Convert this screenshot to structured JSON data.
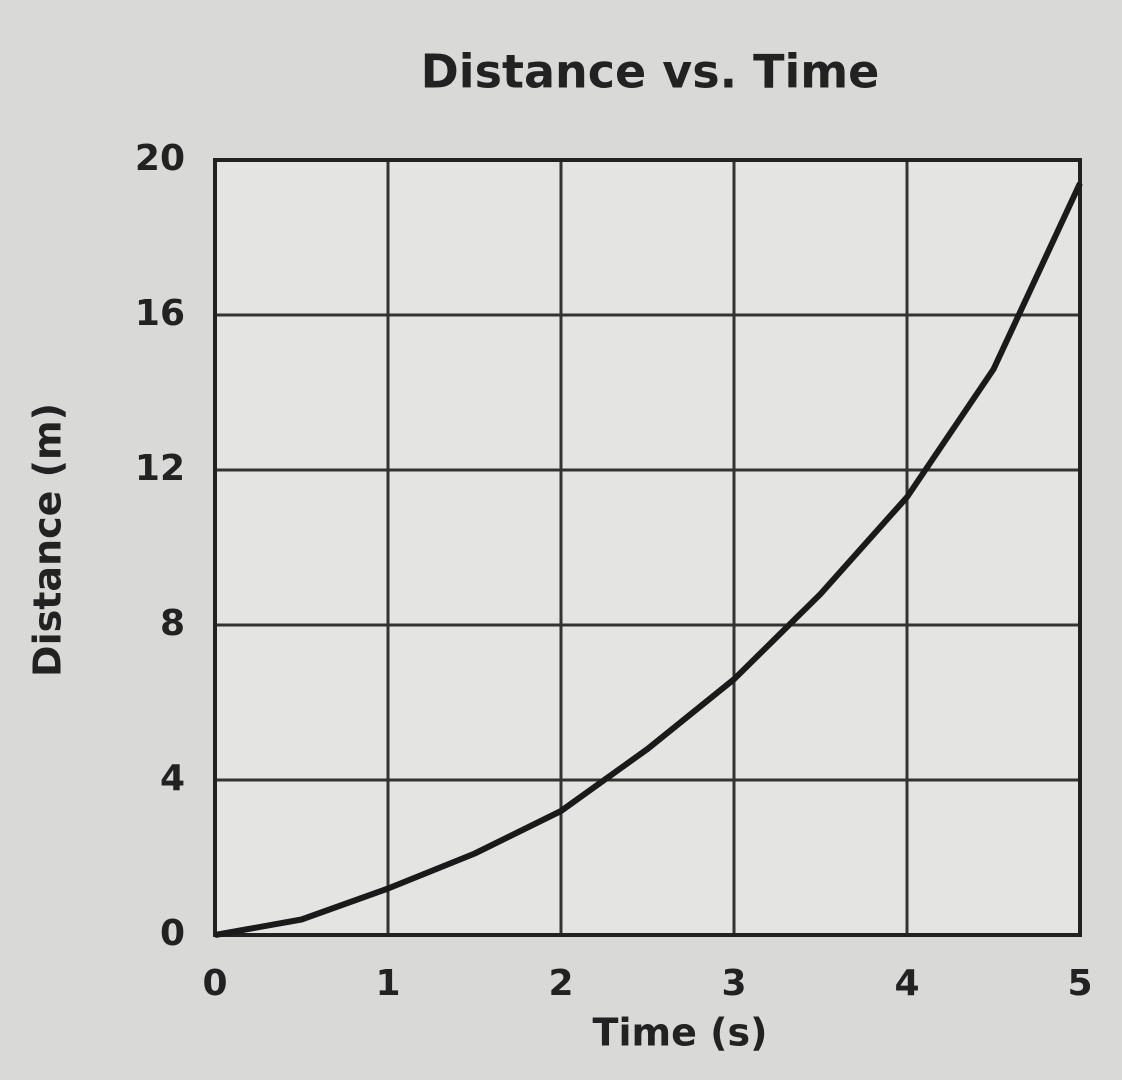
{
  "chart_data": {
    "type": "line",
    "title": "Distance vs. Time",
    "x_label": "Time (s)",
    "y_label": "Distance (m)",
    "x": [
      0,
      0.5,
      1,
      1.5,
      2,
      2.5,
      3,
      3.5,
      4,
      4.5,
      5
    ],
    "series": [
      {
        "name": "Distance",
        "color": "#1a1a1a",
        "values": [
          0,
          0.4,
          1.2,
          2.1,
          3.2,
          4.8,
          6.6,
          8.8,
          11.3,
          14.6,
          19.4
        ]
      }
    ],
    "xlim": [
      0,
      5
    ],
    "xticks": [
      0,
      1,
      2,
      3,
      4,
      5
    ],
    "ylim": [
      0,
      20
    ],
    "yticks": [
      0,
      4,
      8,
      12,
      16,
      20
    ],
    "grid": true
  }
}
